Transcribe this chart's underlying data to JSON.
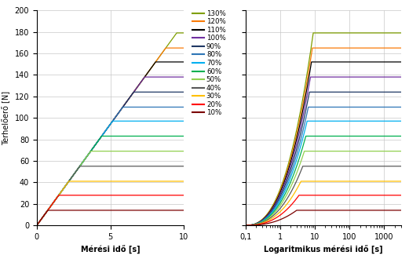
{
  "series": [
    {
      "label": "130%",
      "color": "#7f9f00",
      "max_force": 179,
      "log_ramp_end": 9.0,
      "log_break": 400
    },
    {
      "label": "120%",
      "color": "#f97b08",
      "max_force": 165,
      "log_ramp_end": 8.5,
      "log_break": 350
    },
    {
      "label": "110%",
      "color": "#000000",
      "max_force": 152,
      "log_ramp_end": 8.0,
      "log_break": null
    },
    {
      "label": "100%",
      "color": "#7030a0",
      "max_force": 138,
      "log_ramp_end": 7.5,
      "log_break": null
    },
    {
      "label": "90%",
      "color": "#1f3864",
      "max_force": 124,
      "log_ramp_end": 7.0,
      "log_break": null
    },
    {
      "label": "80%",
      "color": "#2e75b6",
      "max_force": 110,
      "log_ramp_end": 6.5,
      "log_break": null
    },
    {
      "label": "70%",
      "color": "#00b0f0",
      "max_force": 97,
      "log_ramp_end": 6.0,
      "log_break": null
    },
    {
      "label": "60%",
      "color": "#00b050",
      "max_force": 83,
      "log_ramp_end": 5.5,
      "log_break": null
    },
    {
      "label": "50%",
      "color": "#92d050",
      "max_force": 69,
      "log_ramp_end": 5.0,
      "log_break": null
    },
    {
      "label": "40%",
      "color": "#595959",
      "max_force": 55,
      "log_ramp_end": 4.5,
      "log_break": null
    },
    {
      "label": "30%",
      "color": "#ffc000",
      "max_force": 41,
      "log_ramp_end": 4.0,
      "log_break": null
    },
    {
      "label": "20%",
      "color": "#ff0000",
      "max_force": 28,
      "log_ramp_end": 3.5,
      "log_break": null
    },
    {
      "label": "10%",
      "color": "#7b0000",
      "max_force": 14,
      "log_ramp_end": 3.0,
      "log_break": null
    }
  ],
  "ramp_slope": 18.9,
  "ylabel": "Terhelőerő [N]",
  "xlabel_linear": "Mérési idő [s]",
  "xlabel_log": "Logaritmikus mérési idő [s]",
  "ylim": [
    0,
    200
  ],
  "xlim_linear": [
    0,
    10
  ],
  "xlim_log": [
    0.1,
    3000
  ],
  "yticks": [
    0,
    20,
    40,
    60,
    80,
    100,
    120,
    140,
    160,
    180,
    200
  ],
  "xticks_linear": [
    0,
    5,
    10
  ],
  "log_hold_end": 3000,
  "background_color": "#ffffff",
  "grid_color": "#c8c8c8"
}
